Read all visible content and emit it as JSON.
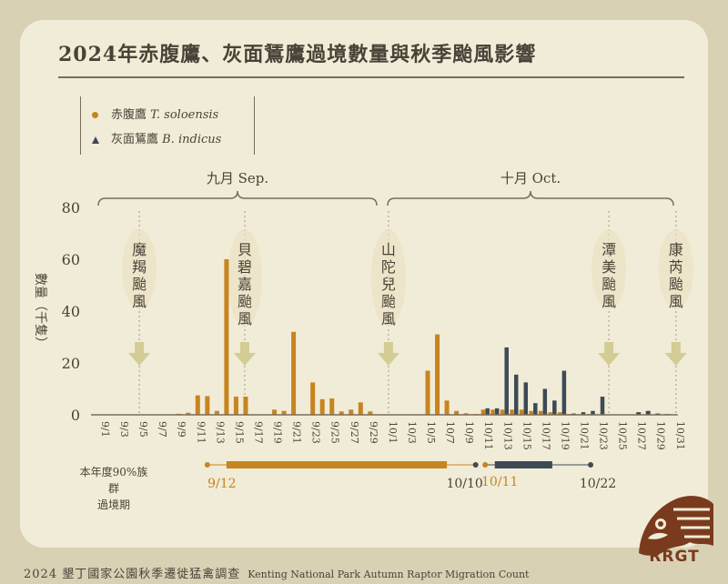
{
  "title": "2024年赤腹鷹、灰面鵟鷹過境數量與秋季颱風影響",
  "legend": {
    "series1_zh": "赤腹鷹",
    "series1_sci": "T. soloensis",
    "series2_zh": "灰面鵟鷹",
    "series2_sci": "B. indicus"
  },
  "months": {
    "sep": "九月 Sep.",
    "oct": "十月 Oct."
  },
  "period_label": [
    "本年度90%族群",
    "過境期"
  ],
  "period_dates": {
    "s1_start": "9/12",
    "s1_end": "10/10",
    "s2_start": "10/11",
    "s2_end": "10/22"
  },
  "footer": {
    "zh": "2024 墾丁國家公園秋季遷徙猛禽調查",
    "en": "Kenting National Park Autumn Raptor Migration Count"
  },
  "logo_text": "RRGT",
  "colors": {
    "series1": "#c7841f",
    "series2": "#3e4a56",
    "axis": "#7a6d5a",
    "arrow": "#d3cc94",
    "text": "#4a4238"
  },
  "chart_data": {
    "type": "bar",
    "ylabel": "數量（千隻）",
    "ylim": [
      0,
      80
    ],
    "yticks": [
      0,
      20,
      40,
      60,
      80
    ],
    "categories": [
      "9/1",
      "9/2",
      "9/3",
      "9/4",
      "9/5",
      "9/6",
      "9/7",
      "9/8",
      "9/9",
      "9/10",
      "9/11",
      "9/12",
      "9/13",
      "9/14",
      "9/15",
      "9/16",
      "9/17",
      "9/18",
      "9/19",
      "9/20",
      "9/21",
      "9/22",
      "9/23",
      "9/24",
      "9/25",
      "9/26",
      "9/27",
      "9/28",
      "9/29",
      "9/30",
      "10/1",
      "10/2",
      "10/3",
      "10/4",
      "10/5",
      "10/6",
      "10/7",
      "10/8",
      "10/9",
      "10/10",
      "10/11",
      "10/12",
      "10/13",
      "10/14",
      "10/15",
      "10/16",
      "10/17",
      "10/18",
      "10/19",
      "10/20",
      "10/21",
      "10/22",
      "10/23",
      "10/24",
      "10/25",
      "10/26",
      "10/27",
      "10/28",
      "10/29",
      "10/30",
      "10/31"
    ],
    "xtick_labels": [
      "9/1",
      "9/3",
      "9/5",
      "9/7",
      "9/9",
      "9/11",
      "9/13",
      "9/15",
      "9/17",
      "9/19",
      "9/21",
      "9/23",
      "9/25",
      "9/27",
      "9/29",
      "10/1",
      "10/3",
      "10/5",
      "10/7",
      "10/9",
      "10/11",
      "10/13",
      "10/15",
      "10/17",
      "10/19",
      "10/21",
      "10/23",
      "10/25",
      "10/27",
      "10/29",
      "10/31"
    ],
    "series": [
      {
        "name": "赤腹鷹 T. soloensis",
        "values": [
          0,
          0,
          0,
          0,
          0,
          0,
          0,
          0,
          0.4,
          0.8,
          7.5,
          7.2,
          1.5,
          60,
          7,
          7,
          0,
          0,
          2,
          1.5,
          32,
          0,
          12.5,
          6,
          6.3,
          1.3,
          2,
          4.8,
          1.3,
          0,
          0,
          0,
          0,
          0,
          17,
          31,
          5.5,
          1.5,
          0.6,
          0.3,
          2,
          2,
          2,
          2,
          2,
          1.5,
          1.5,
          1,
          1,
          0.3,
          0.2,
          0.3,
          0.2,
          0,
          0,
          0,
          0,
          0,
          0,
          0,
          0
        ]
      },
      {
        "name": "灰面鵟鷹 B. indicus",
        "values": [
          0,
          0,
          0,
          0,
          0,
          0,
          0,
          0,
          0,
          0,
          0,
          0,
          0,
          0,
          0,
          0,
          0,
          0,
          0,
          0,
          0,
          0,
          0,
          0,
          0,
          0,
          0,
          0,
          0,
          0,
          0,
          0,
          0,
          0,
          0,
          0,
          0,
          0,
          0,
          0,
          2.5,
          2.5,
          26,
          15.5,
          12.5,
          4.5,
          10,
          5.5,
          17,
          0.5,
          1,
          1.5,
          7,
          0,
          0,
          0,
          1,
          1.5,
          0.5,
          0.3,
          0
        ]
      }
    ],
    "typhoons": [
      {
        "name": "魔羯颱風",
        "date": "9/5"
      },
      {
        "name": "貝碧嘉颱風",
        "date": "9/16"
      },
      {
        "name": "山陀兒颱風",
        "date": "10/1"
      },
      {
        "name": "潭美颱風",
        "date": "10/24"
      },
      {
        "name": "康芮颱風",
        "date": "10/31"
      }
    ]
  }
}
